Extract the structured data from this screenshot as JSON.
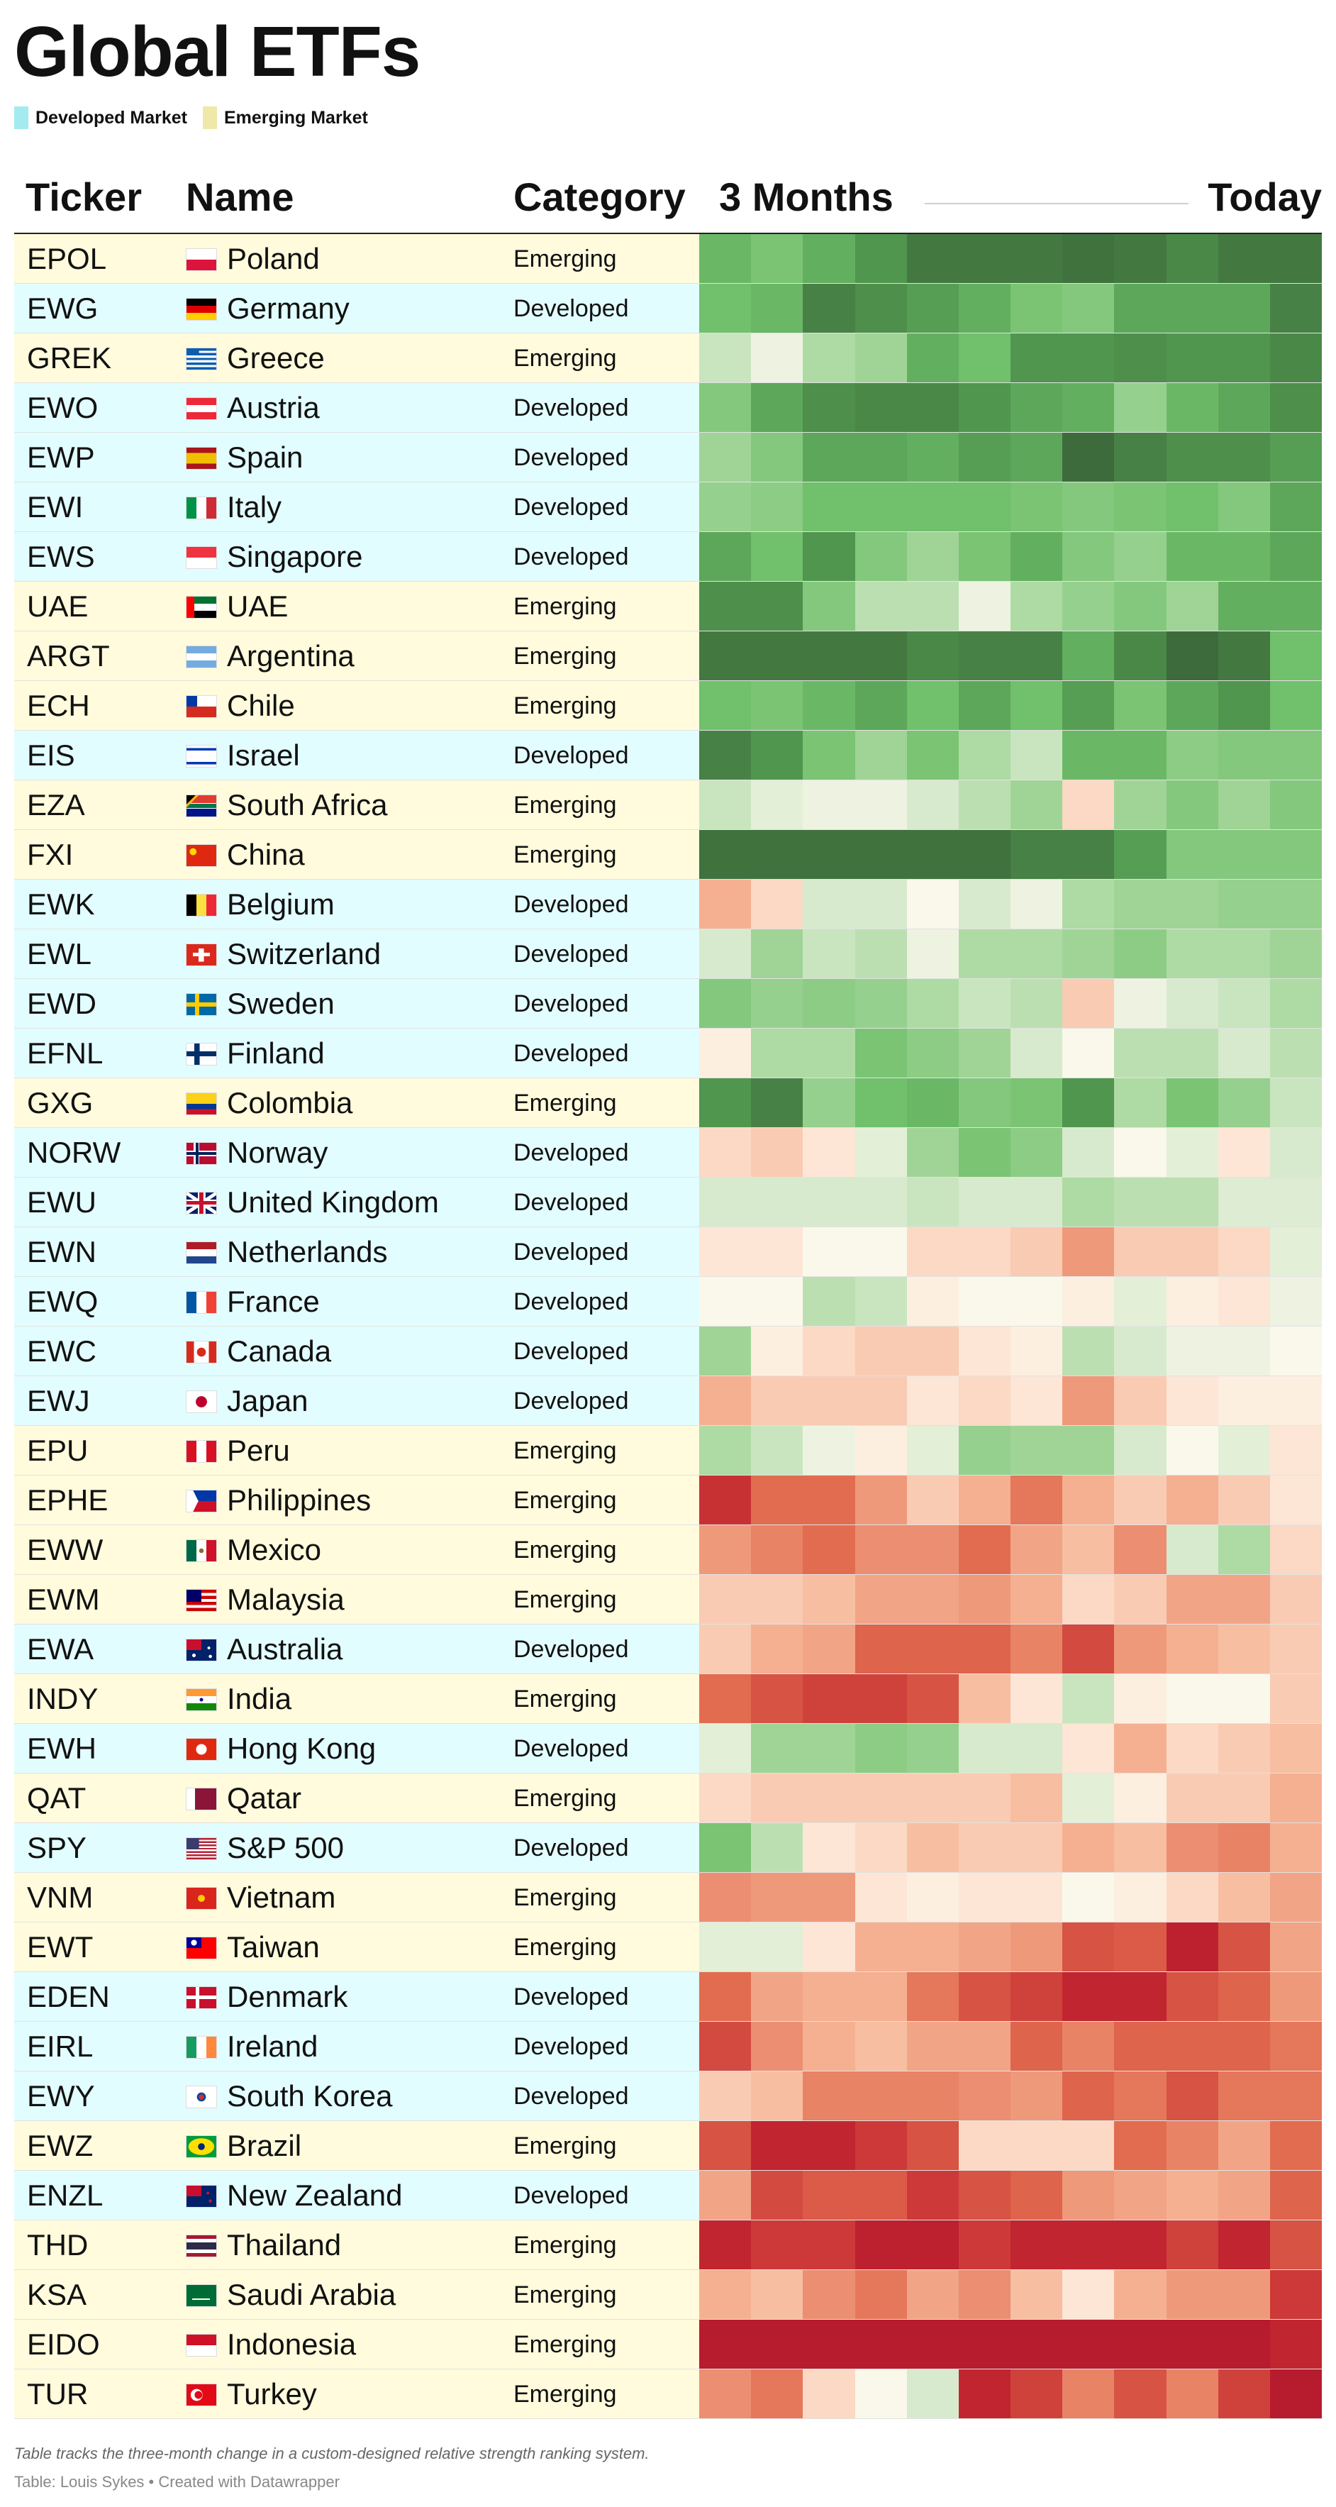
{
  "title": "Global ETFs",
  "legend": [
    {
      "label": "Developed Market",
      "color": "#a4ebef"
    },
    {
      "label": "Emerging Market",
      "color": "#f0e8a8"
    }
  ],
  "row_colors": {
    "Developed": "#e2fdff",
    "Emerging": "#fffbdc"
  },
  "headers": {
    "ticker": "Ticker",
    "name": "Name",
    "category": "Category",
    "start": "3 Months",
    "end": "Today"
  },
  "chart_data": {
    "type": "heatmap",
    "title": "Global ETFs",
    "x": [
      "3 Months",
      "",
      "",
      "",
      "",
      "",
      "",
      "",
      "",
      "",
      "",
      "Today"
    ],
    "color_scale": {
      "low": "red",
      "mid": "cream",
      "high": "green",
      "range": [
        0,
        100
      ]
    },
    "rows": [
      {
        "ticker": "EPOL",
        "name": "Poland",
        "category": "Emerging",
        "flag": "poland-flag",
        "values": [
          78,
          74,
          80,
          86,
          94,
          94,
          94,
          96,
          94,
          90,
          94,
          94
        ]
      },
      {
        "ticker": "EWG",
        "name": "Germany",
        "category": "Developed",
        "flag": "germany-flag",
        "values": [
          76,
          78,
          92,
          88,
          84,
          80,
          74,
          72,
          82,
          82,
          82,
          92
        ]
      },
      {
        "ticker": "GREK",
        "name": "Greece",
        "category": "Emerging",
        "flag": "greece-flag",
        "values": [
          60,
          54,
          64,
          66,
          80,
          76,
          86,
          86,
          88,
          86,
          86,
          90
        ]
      },
      {
        "ticker": "EWO",
        "name": "Austria",
        "category": "Developed",
        "flag": "austria-flag",
        "values": [
          72,
          82,
          88,
          90,
          90,
          86,
          82,
          80,
          68,
          78,
          82,
          88
        ]
      },
      {
        "ticker": "EWP",
        "name": "Spain",
        "category": "Developed",
        "flag": "spain-flag",
        "values": [
          66,
          72,
          82,
          82,
          80,
          84,
          82,
          98,
          92,
          88,
          88,
          84
        ]
      },
      {
        "ticker": "EWI",
        "name": "Italy",
        "category": "Developed",
        "flag": "italy-flag",
        "values": [
          68,
          70,
          76,
          76,
          76,
          76,
          74,
          72,
          74,
          76,
          72,
          82
        ]
      },
      {
        "ticker": "EWS",
        "name": "Singapore",
        "category": "Developed",
        "flag": "singapore-flag",
        "values": [
          82,
          76,
          86,
          72,
          66,
          74,
          80,
          72,
          68,
          78,
          78,
          82
        ]
      },
      {
        "ticker": "UAE",
        "name": "UAE",
        "category": "Emerging",
        "flag": "uae-flag",
        "values": [
          88,
          88,
          72,
          62,
          62,
          54,
          64,
          68,
          72,
          66,
          80,
          80
        ]
      },
      {
        "ticker": "ARGT",
        "name": "Argentina",
        "category": "Emerging",
        "flag": "argentina-flag",
        "values": [
          94,
          94,
          94,
          94,
          90,
          92,
          92,
          80,
          90,
          98,
          94,
          76
        ]
      },
      {
        "ticker": "ECH",
        "name": "Chile",
        "category": "Emerging",
        "flag": "chile-flag",
        "values": [
          76,
          74,
          78,
          82,
          76,
          82,
          76,
          84,
          74,
          82,
          86,
          76
        ]
      },
      {
        "ticker": "EIS",
        "name": "Israel",
        "category": "Developed",
        "flag": "israel-flag",
        "values": [
          92,
          86,
          74,
          66,
          74,
          64,
          60,
          78,
          78,
          70,
          72,
          72
        ]
      },
      {
        "ticker": "EZA",
        "name": "South Africa",
        "category": "Emerging",
        "flag": "south-africa-flag",
        "values": [
          60,
          56,
          54,
          54,
          58,
          62,
          66,
          46,
          66,
          72,
          66,
          72
        ]
      },
      {
        "ticker": "FXI",
        "name": "China",
        "category": "Emerging",
        "flag": "china-flag",
        "values": [
          96,
          96,
          96,
          96,
          96,
          96,
          92,
          92,
          84,
          72,
          72,
          72
        ]
      },
      {
        "ticker": "EWK",
        "name": "Belgium",
        "category": "Developed",
        "flag": "belgium-flag",
        "values": [
          40,
          46,
          58,
          58,
          52,
          58,
          54,
          64,
          66,
          66,
          68,
          68
        ]
      },
      {
        "ticker": "EWL",
        "name": "Switzerland",
        "category": "Developed",
        "flag": "switzerland-flag",
        "values": [
          58,
          66,
          60,
          62,
          54,
          64,
          64,
          66,
          70,
          64,
          64,
          66
        ]
      },
      {
        "ticker": "EWD",
        "name": "Sweden",
        "category": "Developed",
        "flag": "sweden-flag",
        "values": [
          72,
          68,
          70,
          68,
          64,
          60,
          62,
          44,
          54,
          58,
          60,
          64
        ]
      },
      {
        "ticker": "EFNL",
        "name": "Finland",
        "category": "Developed",
        "flag": "finland-flag",
        "values": [
          50,
          64,
          64,
          74,
          70,
          66,
          58,
          52,
          62,
          62,
          58,
          62
        ]
      },
      {
        "ticker": "GXG",
        "name": "Colombia",
        "category": "Emerging",
        "flag": "colombia-flag",
        "values": [
          86,
          92,
          68,
          76,
          78,
          72,
          74,
          86,
          64,
          74,
          68,
          60
        ]
      },
      {
        "ticker": "NORW",
        "name": "Norway",
        "category": "Developed",
        "flag": "norway-flag",
        "values": [
          46,
          44,
          48,
          56,
          66,
          74,
          70,
          58,
          52,
          56,
          48,
          58
        ]
      },
      {
        "ticker": "EWU",
        "name": "United Kingdom",
        "category": "Developed",
        "flag": "united-kingdom-flag",
        "values": [
          58,
          58,
          58,
          58,
          60,
          58,
          58,
          64,
          62,
          62,
          57,
          57
        ]
      },
      {
        "ticker": "EWN",
        "name": "Netherlands",
        "category": "Developed",
        "flag": "netherlands-flag",
        "values": [
          48,
          48,
          52,
          52,
          46,
          46,
          44,
          36,
          44,
          44,
          46,
          56
        ]
      },
      {
        "ticker": "EWQ",
        "name": "France",
        "category": "Developed",
        "flag": "france-flag",
        "values": [
          52,
          52,
          62,
          60,
          50,
          52,
          52,
          50,
          56,
          50,
          48,
          54
        ]
      },
      {
        "ticker": "EWC",
        "name": "Canada",
        "category": "Developed",
        "flag": "canada-flag",
        "values": [
          66,
          50,
          46,
          44,
          44,
          48,
          50,
          62,
          58,
          54,
          54,
          52
        ]
      },
      {
        "ticker": "EWJ",
        "name": "Japan",
        "category": "Developed",
        "flag": "japan-flag",
        "values": [
          40,
          44,
          44,
          44,
          48,
          46,
          48,
          36,
          44,
          48,
          50,
          50
        ]
      },
      {
        "ticker": "EPU",
        "name": "Peru",
        "category": "Emerging",
        "flag": "peru-flag",
        "values": [
          64,
          60,
          54,
          50,
          56,
          68,
          66,
          66,
          58,
          52,
          56,
          48
        ]
      },
      {
        "ticker": "EPHE",
        "name": "Philippines",
        "category": "Emerging",
        "flag": "philippines-flag",
        "values": [
          14,
          28,
          28,
          36,
          44,
          40,
          30,
          40,
          44,
          40,
          44,
          48
        ]
      },
      {
        "ticker": "EWW",
        "name": "Mexico",
        "category": "Emerging",
        "flag": "mexico-flag",
        "values": [
          36,
          32,
          28,
          34,
          34,
          28,
          38,
          42,
          34,
          58,
          64,
          46
        ]
      },
      {
        "ticker": "EWM",
        "name": "Malaysia",
        "category": "Emerging",
        "flag": "malaysia-flag",
        "values": [
          44,
          44,
          42,
          38,
          38,
          36,
          40,
          46,
          44,
          38,
          38,
          44
        ]
      },
      {
        "ticker": "EWA",
        "name": "Australia",
        "category": "Developed",
        "flag": "australia-flag",
        "values": [
          44,
          40,
          38,
          26,
          26,
          26,
          32,
          20,
          36,
          40,
          42,
          44
        ]
      },
      {
        "ticker": "INDY",
        "name": "India",
        "category": "Emerging",
        "flag": "india-flag",
        "values": [
          28,
          22,
          18,
          18,
          22,
          42,
          48,
          60,
          50,
          52,
          52,
          44
        ]
      },
      {
        "ticker": "EWH",
        "name": "Hong Kong",
        "category": "Developed",
        "flag": "hong-kong-flag",
        "values": [
          56,
          66,
          66,
          70,
          68,
          58,
          58,
          48,
          40,
          46,
          44,
          42
        ]
      },
      {
        "ticker": "QAT",
        "name": "Qatar",
        "category": "Emerging",
        "flag": "qatar-flag",
        "values": [
          46,
          44,
          44,
          44,
          44,
          44,
          42,
          56,
          50,
          44,
          44,
          40
        ]
      },
      {
        "ticker": "SPY",
        "name": "S&P 500",
        "category": "Developed",
        "flag": "united-states-flag",
        "values": [
          74,
          62,
          48,
          46,
          42,
          44,
          44,
          40,
          42,
          34,
          32,
          40
        ]
      },
      {
        "ticker": "VNM",
        "name": "Vietnam",
        "category": "Emerging",
        "flag": "vietnam-flag",
        "values": [
          34,
          36,
          36,
          48,
          50,
          48,
          48,
          52,
          50,
          46,
          42,
          38
        ]
      },
      {
        "ticker": "EWT",
        "name": "Taiwan",
        "category": "Emerging",
        "flag": "taiwan-flag",
        "values": [
          56,
          56,
          48,
          40,
          40,
          38,
          36,
          22,
          24,
          8,
          22,
          38
        ]
      },
      {
        "ticker": "EDEN",
        "name": "Denmark",
        "category": "Developed",
        "flag": "denmark-flag",
        "values": [
          28,
          38,
          40,
          40,
          30,
          22,
          18,
          10,
          10,
          22,
          26,
          36
        ]
      },
      {
        "ticker": "EIRL",
        "name": "Ireland",
        "category": "Developed",
        "flag": "ireland-flag",
        "values": [
          20,
          34,
          40,
          42,
          38,
          38,
          26,
          32,
          26,
          26,
          26,
          30
        ]
      },
      {
        "ticker": "EWY",
        "name": "South Korea",
        "category": "Developed",
        "flag": "south-korea-flag",
        "values": [
          44,
          42,
          32,
          32,
          32,
          34,
          36,
          26,
          30,
          22,
          30,
          30
        ]
      },
      {
        "ticker": "EWZ",
        "name": "Brazil",
        "category": "Emerging",
        "flag": "brazil-flag",
        "values": [
          22,
          10,
          10,
          16,
          22,
          46,
          46,
          46,
          28,
          32,
          38,
          28
        ]
      },
      {
        "ticker": "ENZL",
        "name": "New Zealand",
        "category": "Developed",
        "flag": "new-zealand-flag",
        "values": [
          38,
          20,
          24,
          24,
          16,
          22,
          26,
          36,
          38,
          40,
          38,
          26
        ]
      },
      {
        "ticker": "THD",
        "name": "Thailand",
        "category": "Emerging",
        "flag": "thailand-flag",
        "values": [
          10,
          16,
          16,
          8,
          8,
          16,
          10,
          10,
          10,
          18,
          10,
          22
        ]
      },
      {
        "ticker": "KSA",
        "name": "Saudi Arabia",
        "category": "Emerging",
        "flag": "saudi-arabia-flag",
        "values": [
          40,
          42,
          34,
          30,
          38,
          34,
          42,
          48,
          40,
          36,
          36,
          16
        ]
      },
      {
        "ticker": "EIDO",
        "name": "Indonesia",
        "category": "Emerging",
        "flag": "indonesia-flag",
        "values": [
          4,
          4,
          4,
          4,
          4,
          4,
          4,
          4,
          4,
          4,
          4,
          10
        ]
      },
      {
        "ticker": "TUR",
        "name": "Turkey",
        "category": "Emerging",
        "flag": "turkey-flag",
        "values": [
          34,
          30,
          46,
          52,
          58,
          10,
          18,
          32,
          22,
          32,
          18,
          4
        ]
      }
    ]
  },
  "footer": {
    "note": "Table tracks the three-month change in a custom-designed relative strength ranking system.",
    "source": "Table: Louis Sykes • Created with Datawrapper"
  }
}
